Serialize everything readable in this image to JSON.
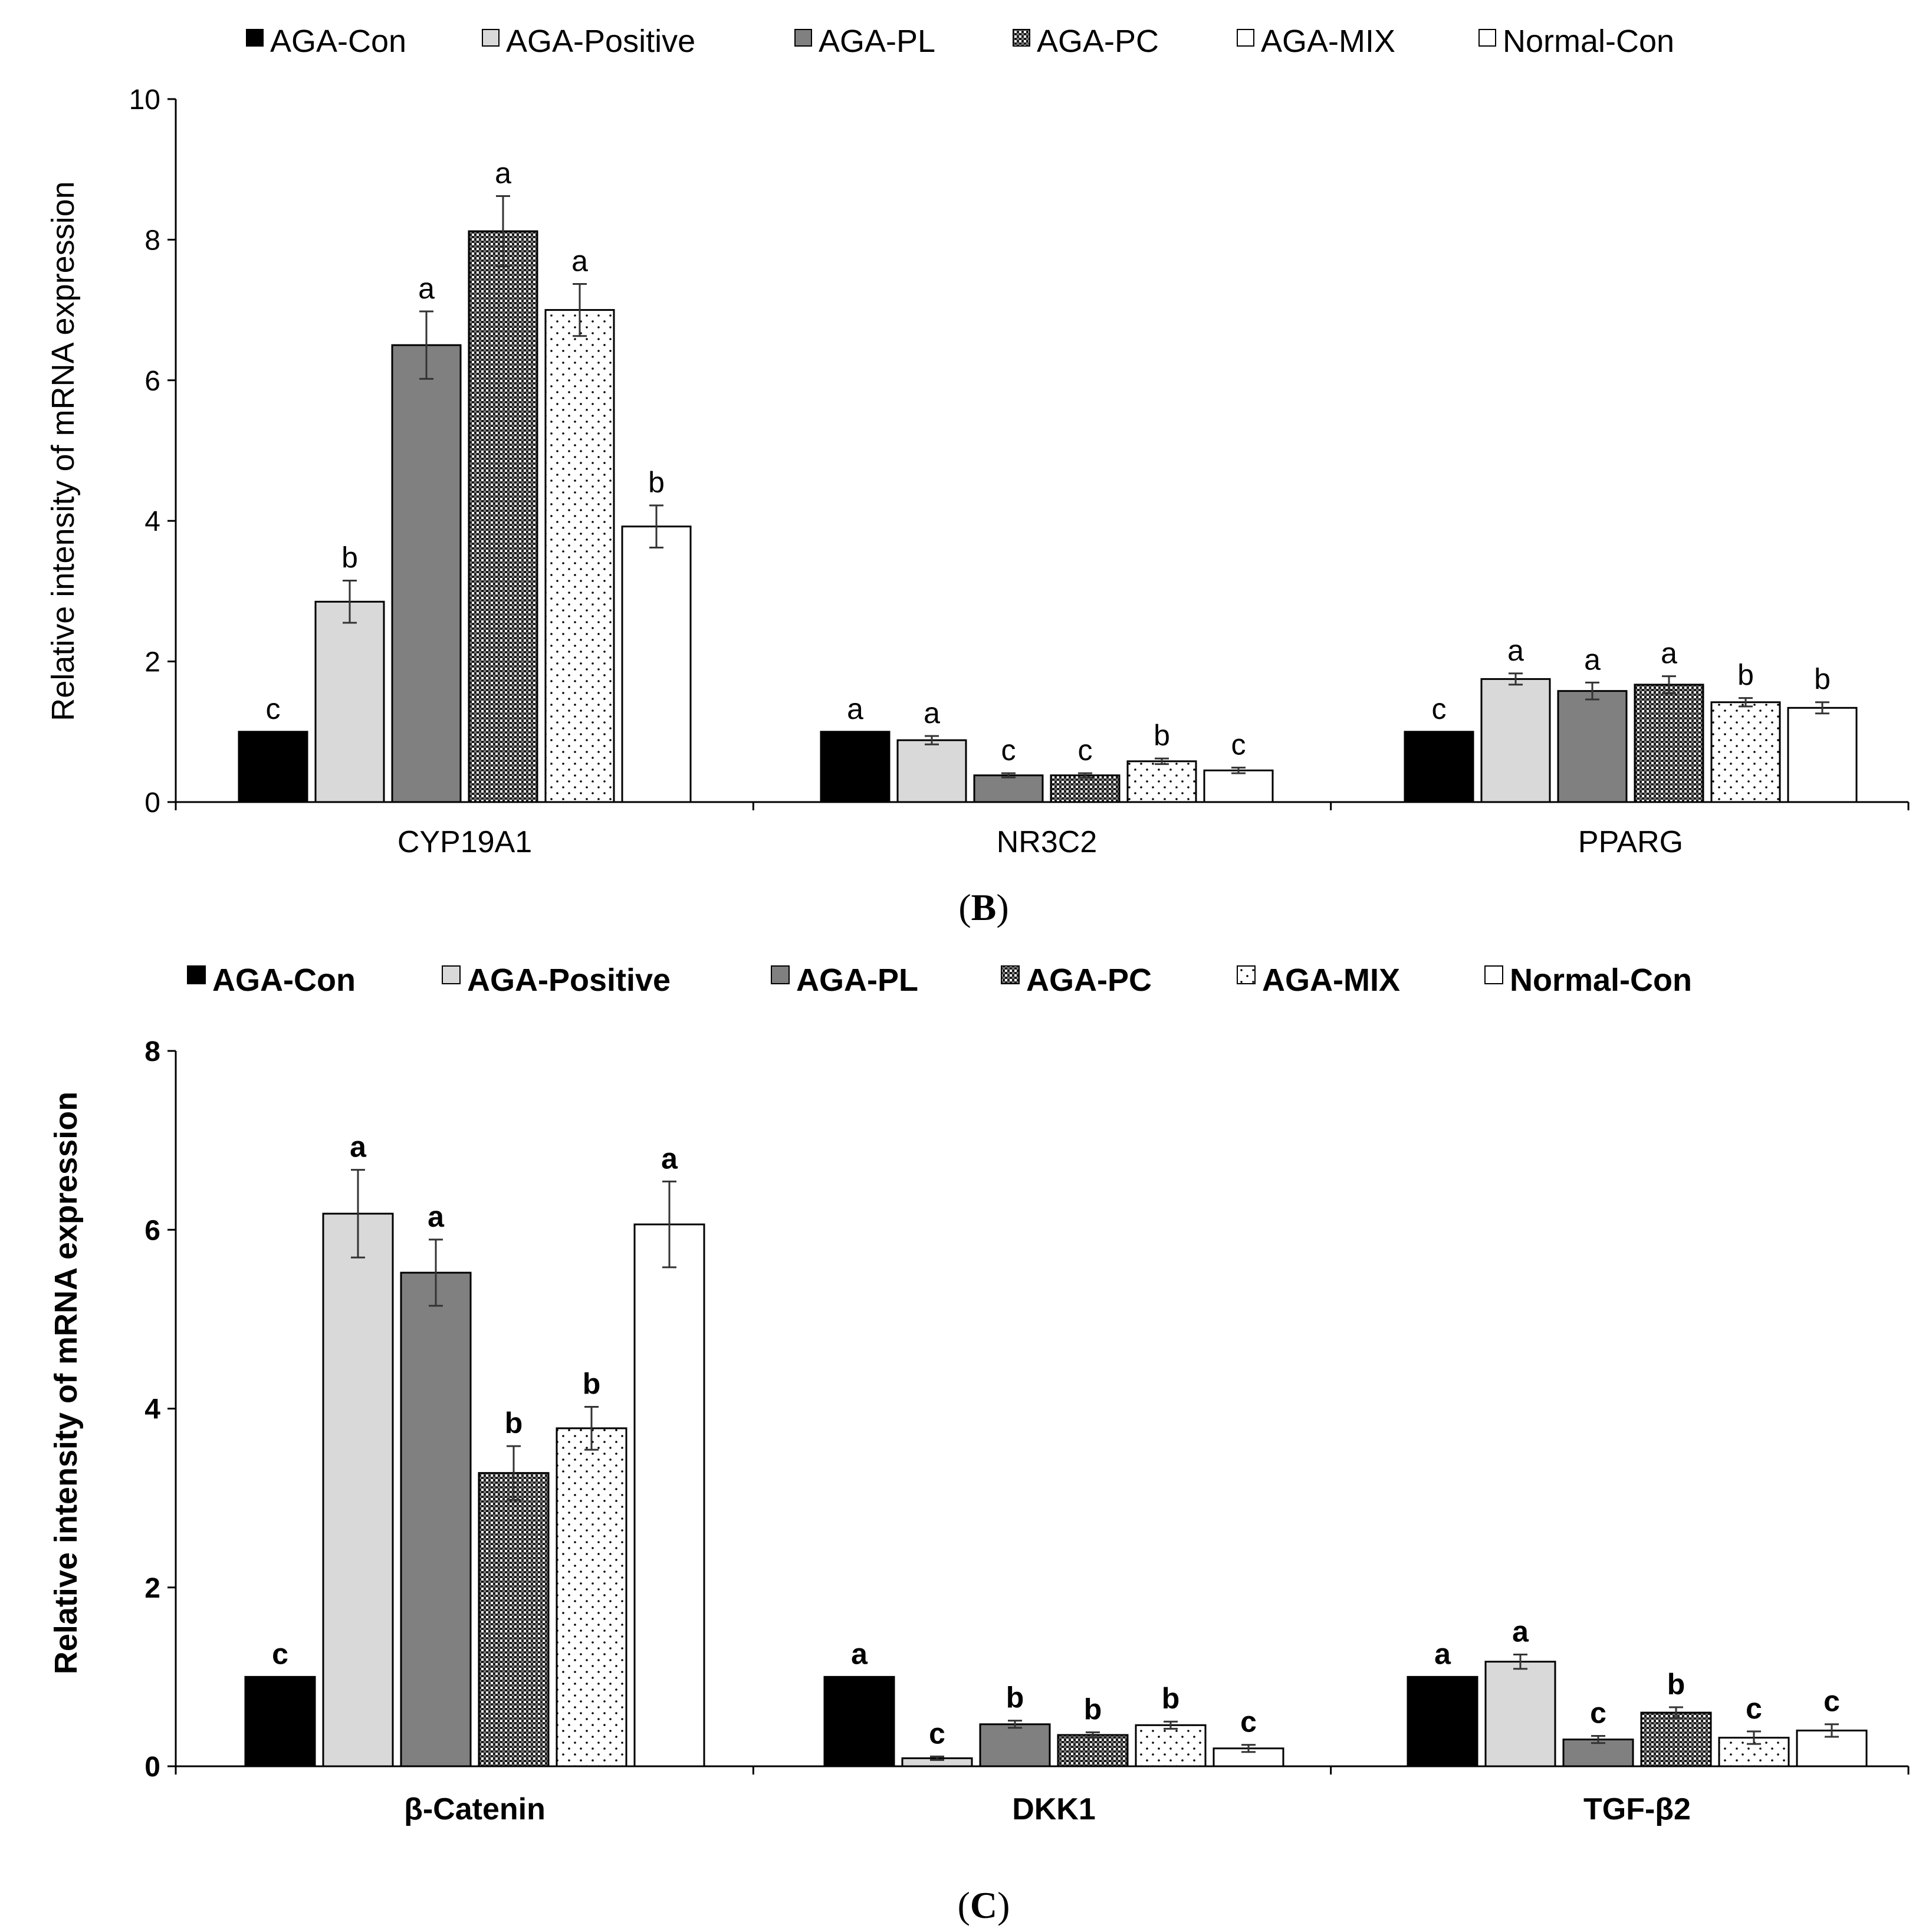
{
  "colors": {
    "AGA-Con": "#000000",
    "AGA-Positive": "#d9d9d9",
    "AGA-PL": "#808080",
    "AGA-PC": "#555555",
    "AGA-MIX": "#ffffff",
    "Normal-Con": "#ffffff",
    "axis": "#000000",
    "error_bar": "#333333"
  },
  "chart_data": [
    {
      "panel": "B",
      "panel_caption": "(B)",
      "type": "bar",
      "ylabel": "Relative intensity of mRNA expression",
      "xlabel": "",
      "ylim": [
        0,
        10
      ],
      "yticks": [
        "0",
        "2",
        "4",
        "6",
        "8",
        "10"
      ],
      "ytick_values": [
        0,
        2,
        4,
        6,
        8,
        10
      ],
      "categories": [
        "CYP19A1",
        "NR3C2",
        "PPARG"
      ],
      "legend": [
        "AGA-Con",
        "AGA-Positive",
        "AGA-PL",
        "AGA-PC",
        "AGA-MIX",
        "Normal-Con"
      ],
      "legend_position": "top",
      "series": [
        {
          "name": "AGA-Con",
          "values": [
            1.0,
            1.0,
            1.0
          ],
          "errors": [
            0.0,
            0.0,
            0.0
          ],
          "letters": [
            "c",
            "a",
            "c"
          ]
        },
        {
          "name": "AGA-Positive",
          "values": [
            2.85,
            0.88,
            1.75
          ],
          "errors": [
            0.3,
            0.06,
            0.08
          ],
          "letters": [
            "b",
            "a",
            "a"
          ]
        },
        {
          "name": "AGA-PL",
          "values": [
            6.5,
            0.38,
            1.58
          ],
          "errors": [
            0.48,
            0.03,
            0.12
          ],
          "letters": [
            "a",
            "c",
            "a"
          ]
        },
        {
          "name": "AGA-PC",
          "values": [
            8.12,
            0.38,
            1.67
          ],
          "errors": [
            0.5,
            0.03,
            0.12
          ],
          "letters": [
            "a",
            "c",
            "a"
          ]
        },
        {
          "name": "AGA-MIX",
          "values": [
            7.0,
            0.58,
            1.42
          ],
          "errors": [
            0.37,
            0.04,
            0.06
          ],
          "letters": [
            "a",
            "b",
            "b"
          ]
        },
        {
          "name": "Normal-Con",
          "values": [
            3.92,
            0.45,
            1.34
          ],
          "errors": [
            0.3,
            0.04,
            0.08
          ],
          "letters": [
            "b",
            "c",
            "b"
          ]
        }
      ]
    },
    {
      "panel": "C",
      "panel_caption": "(C)",
      "type": "bar",
      "ylabel": "Relative intensity of mRNA expression",
      "xlabel": "",
      "ylim": [
        0,
        8
      ],
      "yticks": [
        "0",
        "2",
        "4",
        "6",
        "8"
      ],
      "ytick_values": [
        0,
        2,
        4,
        6,
        8
      ],
      "categories": [
        "β-Catenin",
        "DKK1",
        "TGF-β2"
      ],
      "legend": [
        "AGA-Con",
        "AGA-Positive",
        "AGA-PL",
        "AGA-PC",
        "AGA-MIX",
        "Normal-Con"
      ],
      "legend_position": "top",
      "series": [
        {
          "name": "AGA-Con",
          "values": [
            1.0,
            1.0,
            1.0
          ],
          "errors": [
            0.0,
            0.0,
            0.0
          ],
          "letters": [
            "c",
            "a",
            "a"
          ]
        },
        {
          "name": "AGA-Positive",
          "values": [
            6.18,
            0.09,
            1.17
          ],
          "errors": [
            0.49,
            0.02,
            0.08
          ],
          "letters": [
            "a",
            "c",
            "a"
          ]
        },
        {
          "name": "AGA-PL",
          "values": [
            5.52,
            0.47,
            0.3
          ],
          "errors": [
            0.37,
            0.04,
            0.04
          ],
          "letters": [
            "a",
            "b",
            "c"
          ]
        },
        {
          "name": "AGA-PC",
          "values": [
            3.28,
            0.35,
            0.6
          ],
          "errors": [
            0.3,
            0.03,
            0.06
          ],
          "letters": [
            "b",
            "b",
            "b"
          ]
        },
        {
          "name": "AGA-MIX",
          "values": [
            3.78,
            0.46,
            0.32
          ],
          "errors": [
            0.24,
            0.04,
            0.07
          ],
          "letters": [
            "b",
            "b",
            "c"
          ]
        },
        {
          "name": "Normal-Con",
          "values": [
            6.06,
            0.2,
            0.4
          ],
          "errors": [
            0.48,
            0.04,
            0.07
          ],
          "letters": [
            "a",
            "c",
            "c"
          ]
        }
      ]
    }
  ]
}
